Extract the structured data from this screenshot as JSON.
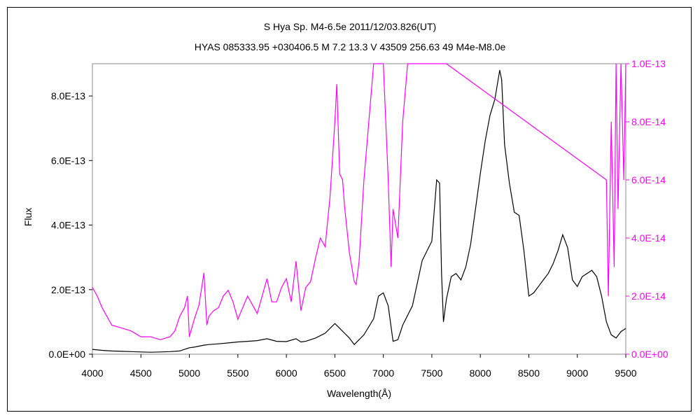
{
  "chart_data": {
    "type": "line",
    "title": "S Hya    Sp. M4-6.5e    2011/12/03.826(UT)",
    "subtitle": "HYAS 085333.95 +030406.5 M 7.2 13.3 V 43509 256.63 49 M4e-M8.0e",
    "xlabel": "Wavelength(Å)",
    "ylabel": "Flux",
    "xlim": [
      4000,
      9500
    ],
    "ylim_left": [
      0,
      9e-13
    ],
    "ylim_right": [
      0,
      1e-13
    ],
    "x_ticks": [
      "4000",
      "4500",
      "5000",
      "5500",
      "6000",
      "6500",
      "7000",
      "7500",
      "8000",
      "8500",
      "9000",
      "9500"
    ],
    "y_ticks_left": [
      "0.0E+00",
      "2.0E-13",
      "4.0E-13",
      "6.0E-13",
      "8.0E-13"
    ],
    "y_ticks_right": [
      "0.0E+00",
      "2.0E-14",
      "4.0E-14",
      "6.0E-14",
      "8.0E-14",
      "1.0E-13"
    ],
    "grid": false,
    "series": [
      {
        "axis": "left",
        "color": "#000000",
        "x": [
          4000,
          4100,
          4200,
          4300,
          4400,
          4500,
          4600,
          4700,
          4800,
          4900,
          4950,
          5000,
          5050,
          5100,
          5150,
          5200,
          5300,
          5400,
          5500,
          5600,
          5700,
          5800,
          5900,
          6000,
          6100,
          6150,
          6200,
          6300,
          6400,
          6500,
          6550,
          6600,
          6650,
          6700,
          6800,
          6900,
          6950,
          7000,
          7050,
          7100,
          7150,
          7200,
          7300,
          7400,
          7450,
          7500,
          7550,
          7580,
          7600,
          7620,
          7650,
          7700,
          7750,
          7800,
          7850,
          7900,
          7950,
          8000,
          8050,
          8100,
          8150,
          8200,
          8220,
          8250,
          8300,
          8350,
          8400,
          8450,
          8500,
          8550,
          8600,
          8650,
          8700,
          8750,
          8800,
          8850,
          8900,
          8950,
          9000,
          9050,
          9100,
          9150,
          9200,
          9250,
          9300,
          9350,
          9400,
          9450,
          9500
        ],
        "y": [
          1.5e-14,
          1.2e-14,
          1e-14,
          9e-15,
          8e-15,
          7e-15,
          6e-15,
          7e-15,
          8e-15,
          1e-14,
          1.5e-14,
          2e-14,
          2.2e-14,
          2.5e-14,
          2.8e-14,
          3e-14,
          3.2e-14,
          3.5e-14,
          3.8e-14,
          4e-14,
          4.2e-14,
          4.8e-14,
          4e-14,
          3.9e-14,
          4.8e-14,
          3.8e-14,
          4e-14,
          5e-14,
          6.5e-14,
          9.5e-14,
          8e-14,
          6.5e-14,
          5e-14,
          3e-14,
          6e-14,
          1.1e-13,
          1.8e-13,
          1.9e-13,
          1.5e-13,
          4e-14,
          4.5e-14,
          9e-14,
          1.5e-13,
          2.9e-13,
          3.2e-13,
          3.5e-13,
          5.4e-13,
          5.3e-13,
          2.5e-13,
          1e-13,
          1.7e-13,
          2.4e-13,
          2.5e-13,
          2.3e-13,
          2.7e-13,
          3.4e-13,
          4.5e-13,
          5.6e-13,
          6.6e-13,
          7.4e-13,
          7.9e-13,
          8.8e-13,
          8.5e-13,
          6.5e-13,
          5.3e-13,
          4.4e-13,
          4.3e-13,
          3.2e-13,
          1.8e-13,
          1.9e-13,
          2.1e-13,
          2.3e-13,
          2.5e-13,
          2.8e-13,
          3.2e-13,
          3.7e-13,
          3.3e-13,
          2.3e-13,
          2.1e-13,
          2.4e-13,
          2.5e-13,
          2.6e-13,
          2.4e-13,
          1.8e-13,
          1e-13,
          6e-14,
          5e-14,
          7e-14,
          8e-14
        ]
      },
      {
        "axis": "right",
        "color": "#ff00ff",
        "x": [
          4000,
          4050,
          4100,
          4150,
          4200,
          4300,
          4400,
          4500,
          4600,
          4700,
          4800,
          4850,
          4900,
          4950,
          4980,
          5000,
          5050,
          5100,
          5150,
          5180,
          5200,
          5250,
          5300,
          5350,
          5400,
          5450,
          5500,
          5550,
          5600,
          5650,
          5700,
          5750,
          5800,
          5850,
          5900,
          5950,
          6000,
          6050,
          6100,
          6150,
          6200,
          6250,
          6300,
          6350,
          6400,
          6450,
          6500,
          6520,
          6550,
          6580,
          6600,
          6650,
          6700,
          6720,
          6750,
          6800,
          6850,
          6900,
          6950,
          6980,
          7000,
          7050,
          7080,
          7100,
          7150,
          7200,
          7250,
          7300,
          7350,
          7400,
          7450,
          7500,
          7550,
          7600,
          7650,
          9300,
          9320,
          9350,
          9380,
          9400,
          9420,
          9450,
          9480,
          9500
        ],
        "y": [
          2.3e-14,
          2e-14,
          1.6e-14,
          1.3e-14,
          1e-14,
          9e-15,
          8e-15,
          6e-15,
          6e-15,
          5e-15,
          6e-15,
          8e-15,
          1.3e-14,
          1.6e-14,
          2e-14,
          6e-15,
          1.2e-14,
          1.7e-14,
          2.8e-14,
          1e-14,
          1.3e-14,
          1.5e-14,
          1.6e-14,
          2e-14,
          2.2e-14,
          1.8e-14,
          1.2e-14,
          1.6e-14,
          2e-14,
          1.7e-14,
          1.4e-14,
          2e-14,
          2.6e-14,
          1.8e-14,
          1.8e-14,
          2.3e-14,
          2.6e-14,
          1.8e-14,
          3.2e-14,
          1.5e-14,
          2.3e-14,
          2.5e-14,
          3.3e-14,
          4e-14,
          3.7e-14,
          5.4e-14,
          8e-14,
          9.3e-14,
          6.2e-14,
          6e-14,
          5.1e-14,
          3.5e-14,
          2.5e-14,
          2.4e-14,
          3.2e-14,
          6e-14,
          8e-14,
          1e-13,
          1e-13,
          1e-13,
          1e-13,
          6e-14,
          3e-14,
          5e-14,
          4e-14,
          8e-14,
          1e-13,
          1e-13,
          1e-13,
          1e-13,
          1e-13,
          1e-13,
          1e-13,
          1e-13,
          1e-13,
          6e-14,
          2e-14,
          8e-14,
          3e-14,
          1e-13,
          5e-14,
          1e-13,
          6e-14,
          1e-13
        ]
      }
    ]
  }
}
